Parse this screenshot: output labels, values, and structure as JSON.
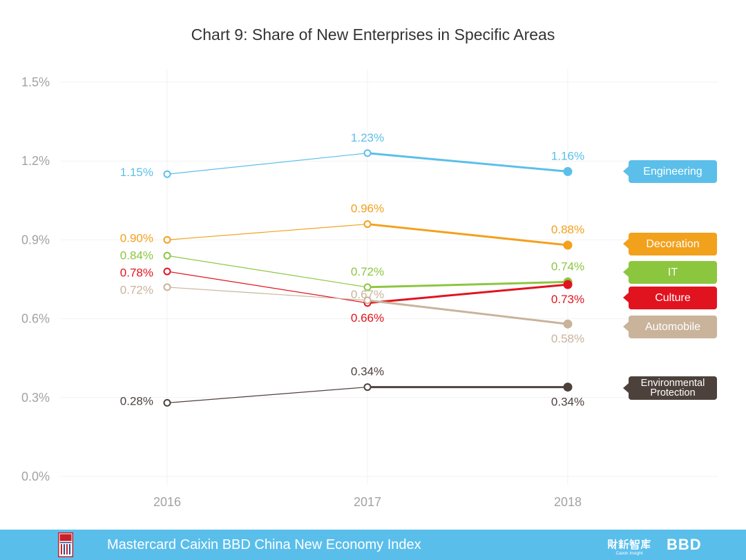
{
  "chart_data": {
    "type": "line",
    "title": "Chart 9: Share of New Enterprises in Specific Areas",
    "xlabel": "",
    "ylabel": "",
    "x": [
      "2016",
      "2017",
      "2018"
    ],
    "ylim": [
      0,
      1.5
    ],
    "yticks": [
      0,
      0.3,
      0.6,
      0.9,
      1.2,
      1.5
    ],
    "ytick_labels": [
      "0.0%",
      "0.3%",
      "0.6%",
      "0.9%",
      "1.2%",
      "1.5%"
    ],
    "grid": true,
    "legend_position": "right",
    "series": [
      {
        "name": "Engineering",
        "color": "#5bbfea",
        "values": [
          1.15,
          1.23,
          1.16
        ],
        "labels": [
          "1.15%",
          "1.23%",
          "1.16%"
        ],
        "label_pos": [
          "left",
          "above",
          "above"
        ]
      },
      {
        "name": "Decoration",
        "color": "#f2a11c",
        "values": [
          0.9,
          0.96,
          0.88
        ],
        "labels": [
          "0.90%",
          "0.96%",
          "0.88%"
        ],
        "label_pos": [
          "left",
          "above",
          "above"
        ]
      },
      {
        "name": "IT",
        "color": "#8cc63f",
        "values": [
          0.84,
          0.72,
          0.74
        ],
        "labels": [
          "0.84%",
          "0.72%",
          "0.74%"
        ],
        "label_pos": [
          "left",
          "above",
          "above"
        ]
      },
      {
        "name": "Culture",
        "color": "#e1131f",
        "values": [
          0.78,
          0.66,
          0.73
        ],
        "labels": [
          "0.78%",
          "0.66%",
          "0.73%"
        ],
        "label_pos": [
          "left",
          "below",
          "below"
        ]
      },
      {
        "name": "Automobile",
        "color": "#c9b39b",
        "values": [
          0.72,
          0.67,
          0.58
        ],
        "labels": [
          "0.72%",
          "0.67%",
          "0.58%"
        ],
        "label_pos": [
          "left",
          "near",
          "below"
        ]
      },
      {
        "name": "Environmental Protection",
        "color": "#4d413c",
        "values": [
          0.28,
          0.34,
          0.34
        ],
        "labels": [
          "0.28%",
          "0.34%",
          "0.34%"
        ],
        "label_pos": [
          "left",
          "above",
          "below"
        ]
      }
    ]
  },
  "footer": {
    "title": "Mastercard Caixin BBD China New Economy Index",
    "band_color": "#5abeeb",
    "logos": {
      "caixin_insight_cn": "财新智库",
      "caixin_insight_en": "Caixin Insight",
      "bbd": "BBD"
    }
  }
}
